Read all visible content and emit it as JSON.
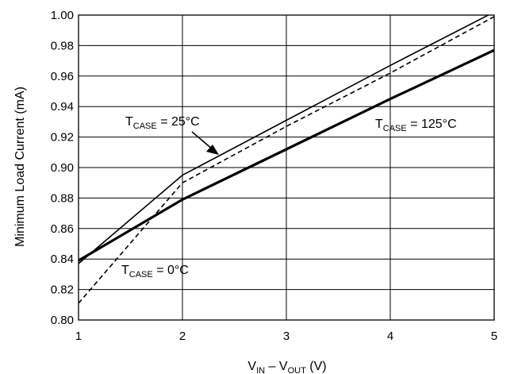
{
  "chart_data": {
    "type": "line",
    "ylabel": "Minimum Load Current (mA)",
    "xlabel": {
      "v1": "V",
      "s1": "IN",
      "mid": " – V",
      "s2": "OUT",
      "unit": " (V)"
    },
    "xlim": [
      1,
      5
    ],
    "ylim": [
      0.8,
      1.0
    ],
    "x_ticks": [
      "1",
      "2",
      "3",
      "4",
      "5"
    ],
    "y_ticks": [
      "0.80",
      "0.82",
      "0.84",
      "0.86",
      "0.88",
      "0.90",
      "0.92",
      "0.94",
      "0.96",
      "0.98",
      "1.00"
    ],
    "grid": true,
    "series": [
      {
        "style": "thin-solid",
        "x": [
          1,
          2,
          3,
          4,
          5
        ],
        "y": [
          0.837,
          0.895,
          0.931,
          0.967,
          1.002
        ]
      },
      {
        "style": "dashed",
        "x": [
          1,
          2,
          3,
          4,
          5
        ],
        "y": [
          0.811,
          0.89,
          0.927,
          0.962,
          0.999
        ]
      },
      {
        "style": "thick-solid",
        "x": [
          1,
          2,
          3,
          4,
          5
        ],
        "y": [
          0.839,
          0.879,
          0.912,
          0.945,
          0.977
        ]
      }
    ],
    "annotations": {
      "t25": {
        "main": "T",
        "sub": "CASE",
        "rest": " = 25°C"
      },
      "t125": {
        "main": "T",
        "sub": "CASE",
        "rest": " = 125°C"
      },
      "t0": {
        "main": "T",
        "sub": "CASE",
        "rest": " = 0°C"
      }
    }
  }
}
